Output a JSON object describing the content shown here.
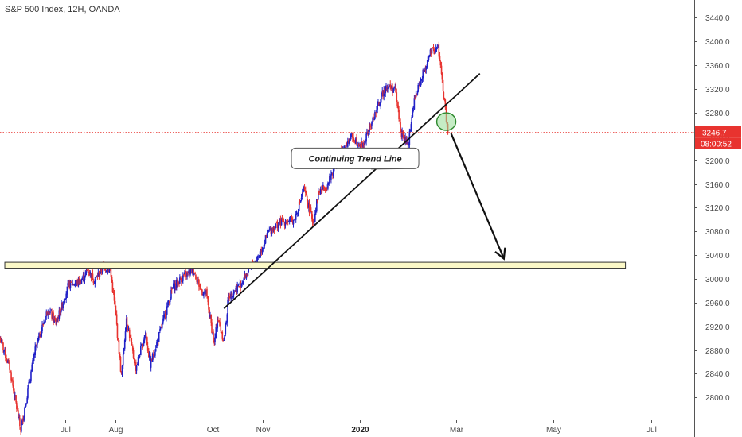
{
  "title": "S&P 500 Index, 12H, OANDA",
  "colors": {
    "up": "#2121c8",
    "down": "#e8332f",
    "price_line": "#e8332f",
    "zone_fill": "#fbf8c7",
    "zone_stroke": "#333333"
  },
  "chart_data": {
    "type": "candlestick",
    "title": "S&P 500 Index, 12H, OANDA",
    "y_ticks": [
      "2800.0",
      "2840.0",
      "2880.0",
      "2920.0",
      "2960.0",
      "3000.0",
      "3040.0",
      "3080.0",
      "3120.0",
      "3160.0",
      "3200.0",
      "3240.0",
      "3280.0",
      "3320.0",
      "3360.0",
      "3400.0",
      "3440.0"
    ],
    "ylim": [
      2763,
      3470
    ],
    "x_ticks": [
      "Jul",
      "Aug",
      "Oct",
      "Nov",
      "2020",
      "Mar",
      "May",
      "Jul"
    ],
    "x_tick_bold": [
      "2020"
    ],
    "x_tick_dates": [
      "2019-07-01",
      "2019-08-01",
      "2019-10-01",
      "2019-11-01",
      "2020-01-01",
      "2020-03-01",
      "2020-05-01",
      "2020-07-01"
    ],
    "xlim": [
      "2019-05-21",
      "2020-07-28"
    ],
    "current_price": "3246.7",
    "countdown": "08:00:52",
    "close_path": [
      [
        "2019-05-21",
        2900
      ],
      [
        "2019-05-27",
        2850
      ],
      [
        "2019-06-03",
        2745
      ],
      [
        "2019-06-06",
        2790
      ],
      [
        "2019-06-12",
        2880
      ],
      [
        "2019-06-20",
        2950
      ],
      [
        "2019-06-25",
        2925
      ],
      [
        "2019-07-03",
        2990
      ],
      [
        "2019-07-10",
        2995
      ],
      [
        "2019-07-15",
        3015
      ],
      [
        "2019-07-19",
        2998
      ],
      [
        "2019-07-25",
        3020
      ],
      [
        "2019-07-29",
        3015
      ],
      [
        "2019-08-01",
        2950
      ],
      [
        "2019-08-05",
        2835
      ],
      [
        "2019-08-08",
        2935
      ],
      [
        "2019-08-12",
        2875
      ],
      [
        "2019-08-14",
        2850
      ],
      [
        "2019-08-20",
        2910
      ],
      [
        "2019-08-23",
        2855
      ],
      [
        "2019-08-28",
        2900
      ],
      [
        "2019-09-06",
        2985
      ],
      [
        "2019-09-13",
        3005
      ],
      [
        "2019-09-19",
        3015
      ],
      [
        "2019-09-24",
        2980
      ],
      [
        "2019-09-27",
        2975
      ],
      [
        "2019-10-02",
        2890
      ],
      [
        "2019-10-04",
        2935
      ],
      [
        "2019-10-08",
        2895
      ],
      [
        "2019-10-11",
        2970
      ],
      [
        "2019-10-18",
        2990
      ],
      [
        "2019-10-25",
        3020
      ],
      [
        "2019-10-30",
        3040
      ],
      [
        "2019-11-05",
        3080
      ],
      [
        "2019-11-12",
        3095
      ],
      [
        "2019-11-21",
        3100
      ],
      [
        "2019-11-27",
        3150
      ],
      [
        "2019-12-03",
        3095
      ],
      [
        "2019-12-06",
        3145
      ],
      [
        "2019-12-12",
        3160
      ],
      [
        "2019-12-20",
        3215
      ],
      [
        "2019-12-27",
        3240
      ],
      [
        "2019-12-31",
        3230
      ],
      [
        "2020-01-03",
        3225
      ],
      [
        "2020-01-08",
        3260
      ],
      [
        "2020-01-17",
        3325
      ],
      [
        "2020-01-23",
        3320
      ],
      [
        "2020-01-27",
        3245
      ],
      [
        "2020-01-31",
        3225
      ],
      [
        "2020-02-04",
        3300
      ],
      [
        "2020-02-10",
        3350
      ],
      [
        "2020-02-14",
        3380
      ],
      [
        "2020-02-19",
        3390
      ],
      [
        "2020-02-21",
        3345
      ],
      [
        "2020-02-24",
        3270
      ],
      [
        "2020-02-25",
        3246.7
      ]
    ],
    "annotations": {
      "zone": {
        "from": "2019-05-24",
        "to": "2020-06-15",
        "low": 3018,
        "high": 3028
      },
      "trendline": {
        "from": [
          "2019-10-08",
          2950
        ],
        "to": [
          "2020-03-16",
          3346
        ]
      },
      "highlight_circle": {
        "date": "2020-02-24",
        "price": 3265
      },
      "arrow": {
        "from": [
          "2020-02-27",
          3245
        ],
        "to": [
          "2020-03-31",
          3034
        ]
      },
      "callout": {
        "text": "Continuing Trend Line",
        "date": "2019-12-29",
        "price": 3203,
        "pointer_to": [
          "2020-01-08",
          3185
        ]
      }
    }
  }
}
